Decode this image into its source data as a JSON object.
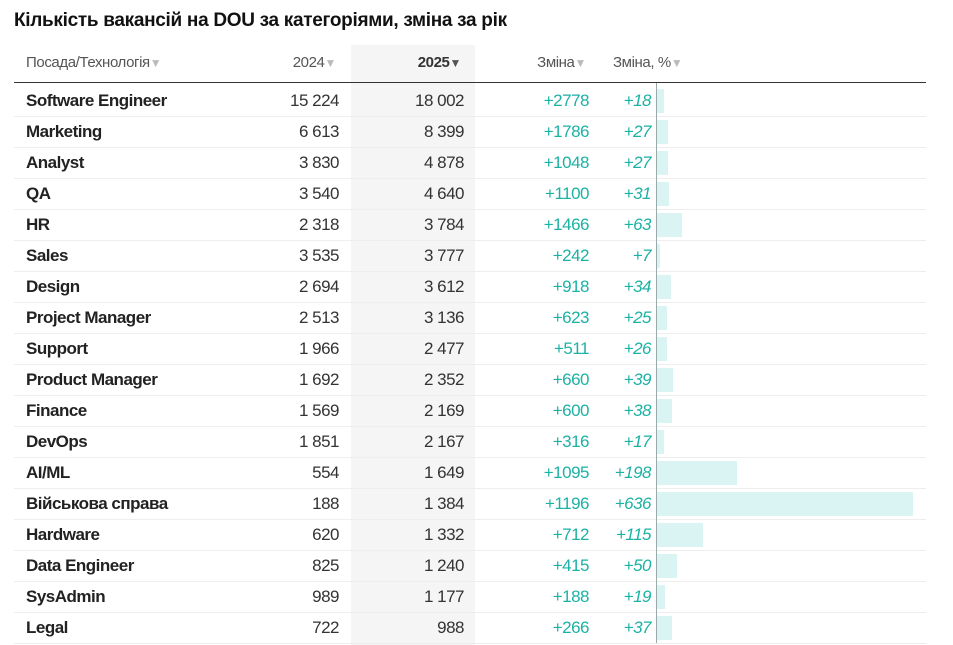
{
  "title": "Кількість вакансій на DOU за категоріями, зміна за рік",
  "headers": {
    "name": "Посада/Технологія",
    "y2024": "2024",
    "y2025": "2025",
    "change": "Зміна",
    "change_pct": "Зміна, %",
    "sort_icon": "▼"
  },
  "colors": {
    "positive": "#1bb2a4",
    "bar": "#d9f4f3",
    "sorted_column_bg": "#f5f5f5"
  },
  "chart_data": {
    "type": "table",
    "sorted_by": "2025",
    "bar_column": "Зміна, %",
    "bar_max": 636,
    "rows": [
      {
        "name": "Software Engineer",
        "y2024": "15 224",
        "y2025": "18 002",
        "change": "+2778",
        "pct": "+18",
        "pct_value": 18
      },
      {
        "name": "Marketing",
        "y2024": "6 613",
        "y2025": "8 399",
        "change": "+1786",
        "pct": "+27",
        "pct_value": 27
      },
      {
        "name": "Analyst",
        "y2024": "3 830",
        "y2025": "4 878",
        "change": "+1048",
        "pct": "+27",
        "pct_value": 27
      },
      {
        "name": "QA",
        "y2024": "3 540",
        "y2025": "4 640",
        "change": "+1100",
        "pct": "+31",
        "pct_value": 31
      },
      {
        "name": "HR",
        "y2024": "2 318",
        "y2025": "3 784",
        "change": "+1466",
        "pct": "+63",
        "pct_value": 63
      },
      {
        "name": "Sales",
        "y2024": "3 535",
        "y2025": "3 777",
        "change": "+242",
        "pct": "+7",
        "pct_value": 7
      },
      {
        "name": "Design",
        "y2024": "2 694",
        "y2025": "3 612",
        "change": "+918",
        "pct": "+34",
        "pct_value": 34
      },
      {
        "name": "Project Manager",
        "y2024": "2 513",
        "y2025": "3 136",
        "change": "+623",
        "pct": "+25",
        "pct_value": 25
      },
      {
        "name": "Support",
        "y2024": "1 966",
        "y2025": "2 477",
        "change": "+511",
        "pct": "+26",
        "pct_value": 26
      },
      {
        "name": "Product Manager",
        "y2024": "1 692",
        "y2025": "2 352",
        "change": "+660",
        "pct": "+39",
        "pct_value": 39
      },
      {
        "name": "Finance",
        "y2024": "1 569",
        "y2025": "2 169",
        "change": "+600",
        "pct": "+38",
        "pct_value": 38
      },
      {
        "name": "DevOps",
        "y2024": "1 851",
        "y2025": "2 167",
        "change": "+316",
        "pct": "+17",
        "pct_value": 17
      },
      {
        "name": "AI/ML",
        "y2024": "554",
        "y2025": "1 649",
        "change": "+1095",
        "pct": "+198",
        "pct_value": 198
      },
      {
        "name": "Військова справа",
        "y2024": "188",
        "y2025": "1 384",
        "change": "+1196",
        "pct": "+636",
        "pct_value": 636
      },
      {
        "name": "Hardware",
        "y2024": "620",
        "y2025": "1 332",
        "change": "+712",
        "pct": "+115",
        "pct_value": 115
      },
      {
        "name": "Data Engineer",
        "y2024": "825",
        "y2025": "1 240",
        "change": "+415",
        "pct": "+50",
        "pct_value": 50
      },
      {
        "name": "SysAdmin",
        "y2024": "989",
        "y2025": "1 177",
        "change": "+188",
        "pct": "+19",
        "pct_value": 19
      },
      {
        "name": "Legal",
        "y2024": "722",
        "y2025": "988",
        "change": "+266",
        "pct": "+37",
        "pct_value": 37
      }
    ]
  }
}
